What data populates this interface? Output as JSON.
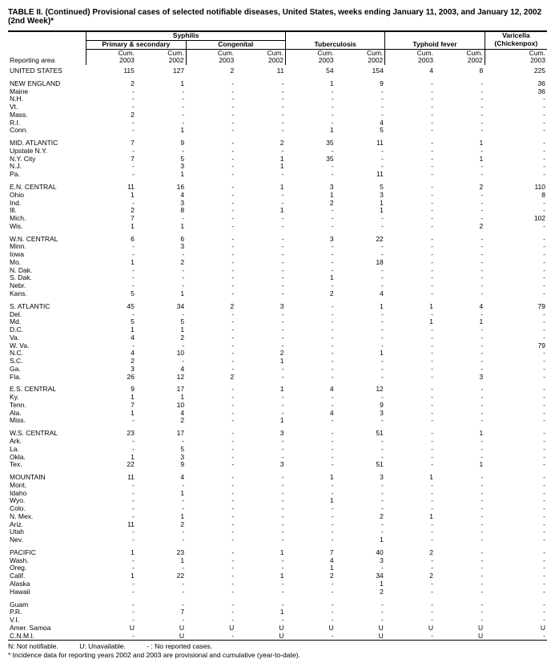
{
  "title": "TABLE II. (Continued) Provisional cases of selected notifiable diseases, United States, weeks ending January 11, 2003, and January 12, 2002 (2nd Week)*",
  "columns": {
    "reporting_area": "Reporting area",
    "syphilis": "Syphilis",
    "primary_secondary": "Primary & secondary",
    "congenital": "Congenital",
    "tuberculosis": "Tuberculosis",
    "typhoid_fever": "Typhoid fever",
    "varicella": "Varicella",
    "chickenpox": "(Chickenpox)",
    "cum2003": "Cum.",
    "cum2003b": "2003",
    "cum2002": "Cum.",
    "cum2002b": "2002"
  },
  "rows": [
    {
      "area": "UNITED STATES",
      "v": [
        "115",
        "127",
        "2",
        "11",
        "54",
        "154",
        "4",
        "8",
        "225"
      ],
      "sect": false
    },
    {
      "area": "NEW ENGLAND",
      "v": [
        "2",
        "1",
        "-",
        "-",
        "1",
        "9",
        "-",
        "-",
        "36"
      ],
      "sect": true
    },
    {
      "area": "Maine",
      "v": [
        "-",
        "-",
        "-",
        "-",
        "-",
        "-",
        "-",
        "-",
        "36"
      ],
      "sect": false
    },
    {
      "area": "N.H.",
      "v": [
        "-",
        "-",
        "-",
        "-",
        "-",
        "-",
        "-",
        "-",
        "-"
      ],
      "sect": false
    },
    {
      "area": "Vt.",
      "v": [
        "-",
        "-",
        "-",
        "-",
        "-",
        "-",
        "-",
        "-",
        "-"
      ],
      "sect": false
    },
    {
      "area": "Mass.",
      "v": [
        "2",
        "-",
        "-",
        "-",
        "-",
        "-",
        "-",
        "-",
        "-"
      ],
      "sect": false
    },
    {
      "area": "R.I.",
      "v": [
        "-",
        "-",
        "-",
        "-",
        "-",
        "4",
        "-",
        "-",
        "-"
      ],
      "sect": false
    },
    {
      "area": "Conn.",
      "v": [
        "-",
        "1",
        "-",
        "-",
        "1",
        "5",
        "-",
        "-",
        "-"
      ],
      "sect": false
    },
    {
      "area": "MID. ATLANTIC",
      "v": [
        "7",
        "9",
        "-",
        "2",
        "35",
        "11",
        "-",
        "1",
        "-"
      ],
      "sect": true
    },
    {
      "area": "Upstate N.Y.",
      "v": [
        "-",
        "-",
        "-",
        "-",
        "-",
        "-",
        "-",
        "-",
        "-"
      ],
      "sect": false
    },
    {
      "area": "N.Y. City",
      "v": [
        "7",
        "5",
        "-",
        "1",
        "35",
        "-",
        "-",
        "1",
        "-"
      ],
      "sect": false
    },
    {
      "area": "N.J.",
      "v": [
        "-",
        "3",
        "-",
        "1",
        "-",
        "-",
        "-",
        "-",
        "-"
      ],
      "sect": false
    },
    {
      "area": "Pa.",
      "v": [
        "-",
        "1",
        "-",
        "-",
        "-",
        "11",
        "-",
        "-",
        "-"
      ],
      "sect": false
    },
    {
      "area": "E.N. CENTRAL",
      "v": [
        "11",
        "16",
        "-",
        "1",
        "3",
        "5",
        "-",
        "2",
        "110"
      ],
      "sect": true
    },
    {
      "area": "Ohio",
      "v": [
        "1",
        "4",
        "-",
        "-",
        "1",
        "3",
        "-",
        "-",
        "8"
      ],
      "sect": false
    },
    {
      "area": "Ind.",
      "v": [
        "-",
        "3",
        "-",
        "-",
        "2",
        "1",
        "-",
        "-",
        "-"
      ],
      "sect": false
    },
    {
      "area": "Ill.",
      "v": [
        "2",
        "8",
        "-",
        "1",
        "-",
        "1",
        "-",
        "-",
        "-"
      ],
      "sect": false
    },
    {
      "area": "Mich.",
      "v": [
        "7",
        "-",
        "-",
        "-",
        "-",
        "-",
        "-",
        "-",
        "102"
      ],
      "sect": false
    },
    {
      "area": "Wis.",
      "v": [
        "1",
        "1",
        "-",
        "-",
        "-",
        "-",
        "-",
        "2",
        "-"
      ],
      "sect": false
    },
    {
      "area": "W.N. CENTRAL",
      "v": [
        "6",
        "6",
        "-",
        "-",
        "3",
        "22",
        "-",
        "-",
        "-"
      ],
      "sect": true
    },
    {
      "area": "Minn.",
      "v": [
        "-",
        "3",
        "-",
        "-",
        "-",
        "-",
        "-",
        "-",
        "-"
      ],
      "sect": false
    },
    {
      "area": "Iowa",
      "v": [
        "-",
        "-",
        "-",
        "-",
        "-",
        "-",
        "-",
        "-",
        "-"
      ],
      "sect": false
    },
    {
      "area": "Mo.",
      "v": [
        "1",
        "2",
        "-",
        "-",
        "-",
        "18",
        "-",
        "-",
        "-"
      ],
      "sect": false
    },
    {
      "area": "N. Dak.",
      "v": [
        "-",
        "-",
        "-",
        "-",
        "-",
        "-",
        "-",
        "-",
        "-"
      ],
      "sect": false
    },
    {
      "area": "S. Dak.",
      "v": [
        "-",
        "-",
        "-",
        "-",
        "1",
        "-",
        "-",
        "-",
        "-"
      ],
      "sect": false
    },
    {
      "area": "Nebr.",
      "v": [
        "-",
        "-",
        "-",
        "-",
        "-",
        "-",
        "-",
        "-",
        "-"
      ],
      "sect": false
    },
    {
      "area": "Kans.",
      "v": [
        "5",
        "1",
        "-",
        "-",
        "2",
        "4",
        "-",
        "-",
        "-"
      ],
      "sect": false
    },
    {
      "area": "S. ATLANTIC",
      "v": [
        "45",
        "34",
        "2",
        "3",
        "-",
        "1",
        "1",
        "4",
        "79"
      ],
      "sect": true
    },
    {
      "area": "Del.",
      "v": [
        "-",
        "-",
        "-",
        "-",
        "-",
        "-",
        "-",
        "-",
        "-"
      ],
      "sect": false
    },
    {
      "area": "Md.",
      "v": [
        "5",
        "5",
        "-",
        "-",
        "-",
        "-",
        "1",
        "1",
        "-"
      ],
      "sect": false
    },
    {
      "area": "D.C.",
      "v": [
        "1",
        "1",
        "-",
        "-",
        "-",
        "-",
        "-",
        "-",
        "-"
      ],
      "sect": false
    },
    {
      "area": "Va.",
      "v": [
        "4",
        "2",
        "-",
        "-",
        "-",
        "-",
        "-",
        "-",
        "-"
      ],
      "sect": false
    },
    {
      "area": "W. Va.",
      "v": [
        "-",
        "-",
        "-",
        "-",
        "-",
        "-",
        "-",
        "-",
        "79"
      ],
      "sect": false
    },
    {
      "area": "N.C.",
      "v": [
        "4",
        "10",
        "-",
        "2",
        "-",
        "1",
        "-",
        "-",
        "-"
      ],
      "sect": false
    },
    {
      "area": "S.C.",
      "v": [
        "2",
        "-",
        "-",
        "1",
        "-",
        "-",
        "-",
        "-",
        "-"
      ],
      "sect": false
    },
    {
      "area": "Ga.",
      "v": [
        "3",
        "4",
        "-",
        "-",
        "-",
        "-",
        "-",
        "-",
        "-"
      ],
      "sect": false
    },
    {
      "area": "Fla.",
      "v": [
        "26",
        "12",
        "2",
        "-",
        "-",
        "-",
        "-",
        "3",
        "-"
      ],
      "sect": false
    },
    {
      "area": "E.S. CENTRAL",
      "v": [
        "9",
        "17",
        "-",
        "1",
        "4",
        "12",
        "-",
        "-",
        "-"
      ],
      "sect": true
    },
    {
      "area": "Ky.",
      "v": [
        "1",
        "1",
        "-",
        "-",
        "-",
        "-",
        "-",
        "-",
        "-"
      ],
      "sect": false
    },
    {
      "area": "Tenn.",
      "v": [
        "7",
        "10",
        "-",
        "-",
        "-",
        "9",
        "-",
        "-",
        "-"
      ],
      "sect": false
    },
    {
      "area": "Ala.",
      "v": [
        "1",
        "4",
        "-",
        "-",
        "4",
        "3",
        "-",
        "-",
        "-"
      ],
      "sect": false
    },
    {
      "area": "Miss.",
      "v": [
        "-",
        "2",
        "-",
        "1",
        "-",
        "-",
        "-",
        "-",
        "-"
      ],
      "sect": false
    },
    {
      "area": "W.S. CENTRAL",
      "v": [
        "23",
        "17",
        "-",
        "3",
        "-",
        "51",
        "-",
        "1",
        "-"
      ],
      "sect": true
    },
    {
      "area": "Ark.",
      "v": [
        "-",
        "-",
        "-",
        "-",
        "-",
        "-",
        "-",
        "-",
        "-"
      ],
      "sect": false
    },
    {
      "area": "La.",
      "v": [
        "-",
        "5",
        "-",
        "-",
        "-",
        "-",
        "-",
        "-",
        "-"
      ],
      "sect": false
    },
    {
      "area": "Okla.",
      "v": [
        "1",
        "3",
        "-",
        "-",
        "-",
        "-",
        "-",
        "-",
        "-"
      ],
      "sect": false
    },
    {
      "area": "Tex.",
      "v": [
        "22",
        "9",
        "-",
        "3",
        "-",
        "51",
        "-",
        "1",
        "-"
      ],
      "sect": false
    },
    {
      "area": "MOUNTAIN",
      "v": [
        "11",
        "4",
        "-",
        "-",
        "1",
        "3",
        "1",
        "-",
        "-"
      ],
      "sect": true
    },
    {
      "area": "Mont.",
      "v": [
        "-",
        "-",
        "-",
        "-",
        "-",
        "-",
        "-",
        "-",
        "-"
      ],
      "sect": false
    },
    {
      "area": "Idaho",
      "v": [
        "-",
        "1",
        "-",
        "-",
        "-",
        "-",
        "-",
        "-",
        "-"
      ],
      "sect": false
    },
    {
      "area": "Wyo.",
      "v": [
        "-",
        "-",
        "-",
        "-",
        "1",
        "-",
        "-",
        "-",
        "-"
      ],
      "sect": false
    },
    {
      "area": "Colo.",
      "v": [
        "-",
        "-",
        "-",
        "-",
        "-",
        "-",
        "-",
        "-",
        "-"
      ],
      "sect": false
    },
    {
      "area": "N. Mex.",
      "v": [
        "-",
        "1",
        "-",
        "-",
        "-",
        "2",
        "1",
        "-",
        "-"
      ],
      "sect": false
    },
    {
      "area": "Ariz.",
      "v": [
        "11",
        "2",
        "-",
        "-",
        "-",
        "-",
        "-",
        "-",
        "-"
      ],
      "sect": false
    },
    {
      "area": "Utah",
      "v": [
        "-",
        "-",
        "-",
        "-",
        "-",
        "-",
        "-",
        "-",
        "-"
      ],
      "sect": false
    },
    {
      "area": "Nev.",
      "v": [
        "-",
        "-",
        "-",
        "-",
        "-",
        "1",
        "-",
        "-",
        "-"
      ],
      "sect": false
    },
    {
      "area": "PACIFIC",
      "v": [
        "1",
        "23",
        "-",
        "1",
        "7",
        "40",
        "2",
        "-",
        "-"
      ],
      "sect": true
    },
    {
      "area": "Wash.",
      "v": [
        "-",
        "1",
        "-",
        "-",
        "4",
        "3",
        "-",
        "-",
        "-"
      ],
      "sect": false
    },
    {
      "area": "Oreg.",
      "v": [
        "-",
        "-",
        "-",
        "-",
        "1",
        "-",
        "-",
        "-",
        "-"
      ],
      "sect": false
    },
    {
      "area": "Calif.",
      "v": [
        "1",
        "22",
        "-",
        "1",
        "2",
        "34",
        "2",
        "-",
        "-"
      ],
      "sect": false
    },
    {
      "area": "Alaska",
      "v": [
        "-",
        "-",
        "-",
        "-",
        "-",
        "1",
        "-",
        "-",
        "-"
      ],
      "sect": false
    },
    {
      "area": "Hawaii",
      "v": [
        "-",
        "-",
        "-",
        "-",
        "-",
        "2",
        "-",
        "-",
        "-"
      ],
      "sect": false
    },
    {
      "area": "Guam",
      "v": [
        "-",
        "-",
        "-",
        "-",
        "-",
        "-",
        "-",
        "-",
        "-"
      ],
      "sect": true
    },
    {
      "area": "P.R.",
      "v": [
        "-",
        "7",
        "-",
        "1",
        "-",
        "-",
        "-",
        "-",
        "-"
      ],
      "sect": false
    },
    {
      "area": "V.I.",
      "v": [
        "-",
        "-",
        "-",
        "-",
        "-",
        "-",
        "-",
        "-",
        "-"
      ],
      "sect": false
    },
    {
      "area": "Amer. Samoa",
      "v": [
        "U",
        "U",
        "U",
        "U",
        "U",
        "U",
        "U",
        "U",
        "U"
      ],
      "sect": false
    },
    {
      "area": "C.N.M.I.",
      "v": [
        "-",
        "U",
        "-",
        "U",
        "-",
        "U",
        "-",
        "U",
        "-"
      ],
      "sect": false
    }
  ],
  "footnotes": {
    "n": "N: Not notifiable.",
    "u": "U: Unavailable.",
    "dash": "- : No reported cases.",
    "star": "* Incidence data for reporting years 2002 and 2003 are provisional and cumulative (year-to-date)."
  }
}
